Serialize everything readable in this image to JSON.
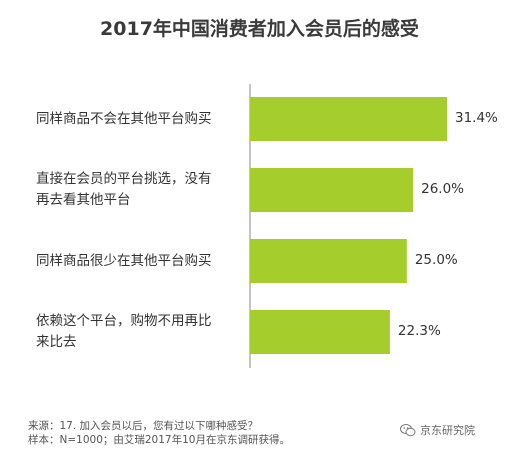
{
  "chart_data": {
    "type": "bar",
    "orientation": "horizontal",
    "title": "2017年中国消费者加入会员后的感受",
    "categories": [
      "同样商品不会在其他平台购买",
      "直接在会员的平台挑选，没有\n再去看其他平台",
      "同样商品很少在其他平台购买",
      "依赖这个平台，购物不用再比\n来比去"
    ],
    "values": [
      31.4,
      26.0,
      25.0,
      22.3
    ],
    "value_labels": [
      "31.4%",
      "26.0%",
      "25.0%",
      "22.3%"
    ],
    "xlim": [
      0,
      31.4
    ],
    "grid": false,
    "legend": "none",
    "bar_color": "#a5cd2c"
  },
  "footnote": {
    "source": "来源：17. 加入会员以后，您有过以下哪种感受？",
    "sample": "样本：N=1000；由艾瑞2017年10月在京东调研获得。"
  },
  "watermark": {
    "text": "京东研究院",
    "icon": "wechat-icon"
  },
  "colors": {
    "bar": "#a5cd2c",
    "axis": "#888888"
  }
}
